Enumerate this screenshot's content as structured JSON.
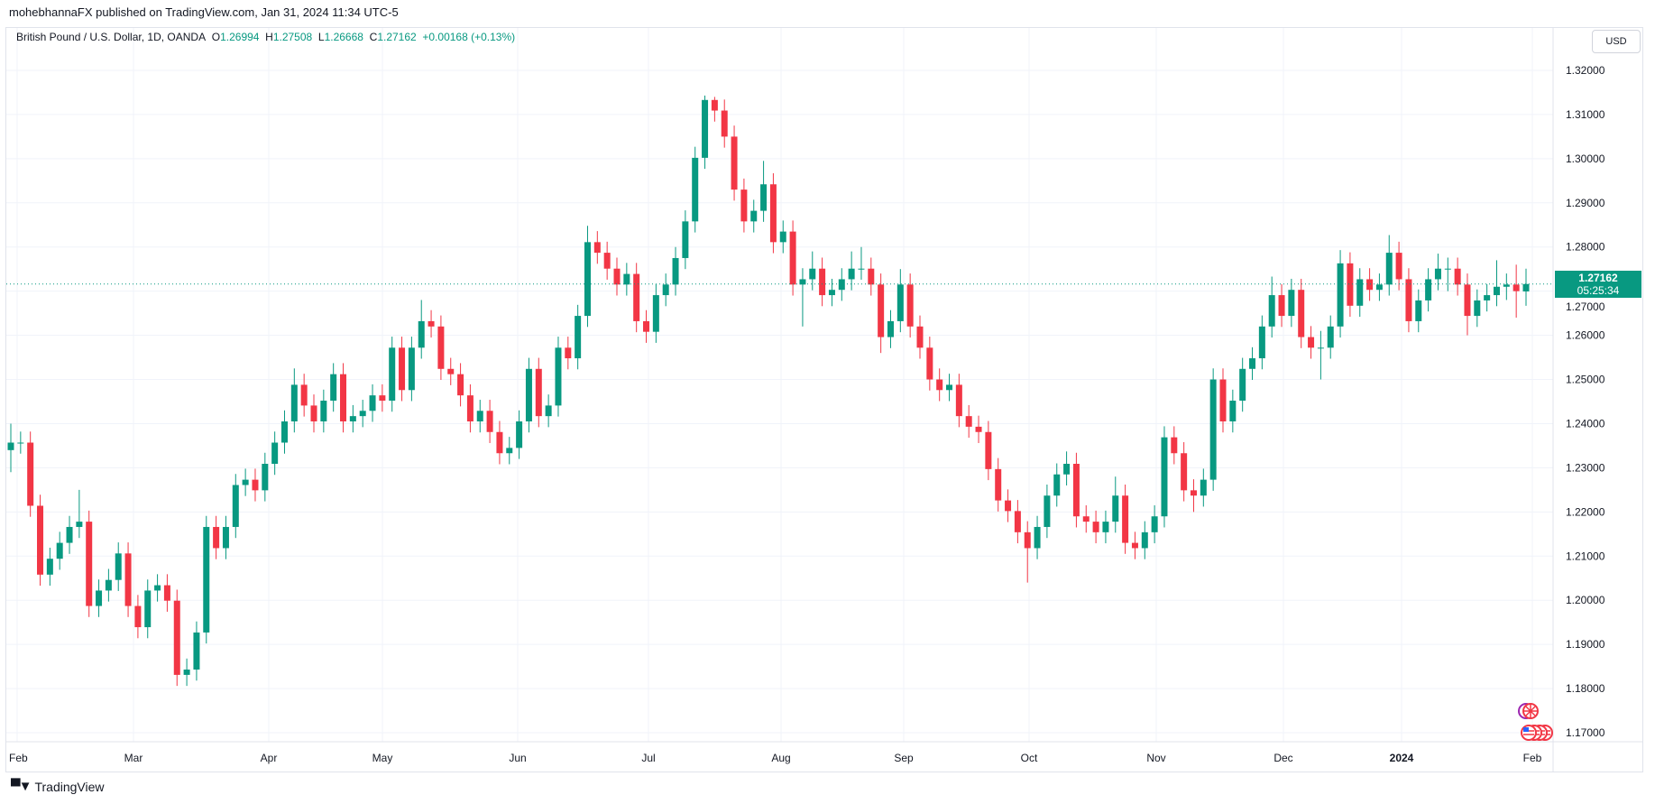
{
  "publisher": "mohebhannaFX published on TradingView.com, Jan 31, 2024 11:34 UTC-5",
  "legend": {
    "symbol": "British Pound / U.S. Dollar, 1D, OANDA",
    "o_label": "O",
    "o": "1.26994",
    "h_label": "H",
    "h": "1.27508",
    "l_label": "L",
    "l": "1.26668",
    "c_label": "C",
    "c": "1.27162",
    "change": "+0.00168 (+0.13%)"
  },
  "currency_button": "USD",
  "last_price": {
    "value": "1.27162",
    "countdown": "05:25:34"
  },
  "footer": {
    "brand": "TradingView",
    "logo_text": "TV"
  },
  "colors": {
    "up": "#089981",
    "down": "#F23645",
    "grid": "#f0f3fa"
  },
  "event_icons": [
    "uk-flag-icon",
    "us-flag-icon"
  ],
  "chart_data": {
    "type": "candlestick",
    "title": "British Pound / U.S. Dollar, 1D, OANDA",
    "xlabel": "",
    "ylabel": "",
    "ylim": [
      1.165,
      1.325
    ],
    "grid": true,
    "y_ticks": [
      "1.17000",
      "1.18000",
      "1.19000",
      "1.20000",
      "1.21000",
      "1.22000",
      "1.23000",
      "1.24000",
      "1.25000",
      "1.26000",
      "1.27000",
      "1.28000",
      "1.29000",
      "1.30000",
      "1.31000",
      "1.32000"
    ],
    "x_ticks": [
      "Feb",
      "Mar",
      "Apr",
      "May",
      "Jun",
      "Jul",
      "Aug",
      "Sep",
      "Oct",
      "Nov",
      "Dec",
      "2024",
      "Feb"
    ],
    "ohlc": [
      [
        1.234,
        1.24,
        1.229,
        1.2357
      ],
      [
        1.2357,
        1.2382,
        1.2332,
        1.2357
      ],
      [
        1.2357,
        1.2382,
        1.2189,
        1.2214
      ],
      [
        1.2214,
        1.2239,
        1.2033,
        1.2058
      ],
      [
        1.2058,
        1.2119,
        1.2033,
        1.2094
      ],
      [
        1.2094,
        1.2155,
        1.2069,
        1.213
      ],
      [
        1.213,
        1.2191,
        1.2105,
        1.2166
      ],
      [
        1.2166,
        1.225,
        1.2141,
        1.2178
      ],
      [
        1.2178,
        1.2203,
        1.1962,
        1.1987
      ],
      [
        1.1987,
        1.2047,
        1.1962,
        1.2022
      ],
      [
        1.2022,
        1.2071,
        1.1997,
        1.2046
      ],
      [
        1.2046,
        1.2131,
        1.2021,
        1.2106
      ],
      [
        1.2106,
        1.2131,
        1.1962,
        1.1987
      ],
      [
        1.1987,
        1.2012,
        1.1914,
        1.1939
      ],
      [
        1.1939,
        1.2047,
        1.1914,
        1.2022
      ],
      [
        1.2022,
        1.2059,
        1.1997,
        1.2034
      ],
      [
        1.2034,
        1.2059,
        1.1974,
        1.1999
      ],
      [
        1.1999,
        1.2024,
        1.1806,
        1.1831
      ],
      [
        1.1831,
        1.1868,
        1.1806,
        1.1843
      ],
      [
        1.1843,
        1.1952,
        1.1818,
        1.1927
      ],
      [
        1.1927,
        1.2191,
        1.1902,
        1.2166
      ],
      [
        1.2166,
        1.2191,
        1.2093,
        1.2118
      ],
      [
        1.2118,
        1.2191,
        1.2093,
        1.2166
      ],
      [
        1.2166,
        1.2286,
        1.2141,
        1.2261
      ],
      [
        1.2261,
        1.2298,
        1.2236,
        1.2273
      ],
      [
        1.2273,
        1.2298,
        1.2224,
        1.2249
      ],
      [
        1.2249,
        1.2334,
        1.2224,
        1.2309
      ],
      [
        1.2309,
        1.2382,
        1.2284,
        1.2357
      ],
      [
        1.2357,
        1.243,
        1.2332,
        1.2405
      ],
      [
        1.2405,
        1.2525,
        1.238,
        1.2488
      ],
      [
        1.2488,
        1.2513,
        1.2416,
        1.2441
      ],
      [
        1.2441,
        1.2466,
        1.238,
        1.2405
      ],
      [
        1.2405,
        1.2477,
        1.238,
        1.2452
      ],
      [
        1.2452,
        1.2537,
        1.2427,
        1.2512
      ],
      [
        1.2512,
        1.2537,
        1.238,
        1.2405
      ],
      [
        1.2405,
        1.2442,
        1.238,
        1.2417
      ],
      [
        1.2417,
        1.2454,
        1.2392,
        1.2429
      ],
      [
        1.2429,
        1.2489,
        1.2404,
        1.2464
      ],
      [
        1.2464,
        1.2489,
        1.2427,
        1.2452
      ],
      [
        1.2452,
        1.2597,
        1.2427,
        1.2572
      ],
      [
        1.2572,
        1.2597,
        1.2451,
        1.2476
      ],
      [
        1.2476,
        1.2597,
        1.2451,
        1.2572
      ],
      [
        1.2572,
        1.268,
        1.2547,
        1.2632
      ],
      [
        1.2632,
        1.2657,
        1.2595,
        1.262
      ],
      [
        1.262,
        1.2645,
        1.2499,
        1.2524
      ],
      [
        1.2524,
        1.2549,
        1.2487,
        1.2512
      ],
      [
        1.2512,
        1.2537,
        1.2439,
        1.2464
      ],
      [
        1.2464,
        1.2489,
        1.238,
        1.2405
      ],
      [
        1.2405,
        1.2454,
        1.238,
        1.2429
      ],
      [
        1.2429,
        1.2454,
        1.2356,
        1.2381
      ],
      [
        1.2381,
        1.2406,
        1.2308,
        1.2333
      ],
      [
        1.2333,
        1.237,
        1.2308,
        1.2345
      ],
      [
        1.2345,
        1.243,
        1.232,
        1.2405
      ],
      [
        1.2405,
        1.2549,
        1.238,
        1.2524
      ],
      [
        1.2524,
        1.2549,
        1.2392,
        1.2417
      ],
      [
        1.2417,
        1.2466,
        1.2392,
        1.2441
      ],
      [
        1.2441,
        1.2597,
        1.2416,
        1.2572
      ],
      [
        1.2572,
        1.2597,
        1.2523,
        1.2548
      ],
      [
        1.2548,
        1.2669,
        1.2523,
        1.2644
      ],
      [
        1.2644,
        1.2848,
        1.2619,
        1.2811
      ],
      [
        1.2811,
        1.2836,
        1.2762,
        1.2787
      ],
      [
        1.2787,
        1.2812,
        1.2726,
        1.2751
      ],
      [
        1.2751,
        1.2776,
        1.269,
        1.2715
      ],
      [
        1.2715,
        1.2764,
        1.269,
        1.2739
      ],
      [
        1.2739,
        1.2764,
        1.2607,
        1.2632
      ],
      [
        1.2632,
        1.2657,
        1.2583,
        1.2608
      ],
      [
        1.2608,
        1.2716,
        1.2583,
        1.2691
      ],
      [
        1.2691,
        1.274,
        1.2666,
        1.2715
      ],
      [
        1.2715,
        1.28,
        1.269,
        1.2775
      ],
      [
        1.2775,
        1.2883,
        1.275,
        1.2858
      ],
      [
        1.2858,
        1.3027,
        1.2833,
        1.3002
      ],
      [
        1.3002,
        1.3143,
        1.2977,
        1.3133
      ],
      [
        1.3133,
        1.314,
        1.3084,
        1.3109
      ],
      [
        1.3109,
        1.3134,
        1.3025,
        1.305
      ],
      [
        1.305,
        1.3075,
        1.2905,
        1.293
      ],
      [
        1.293,
        1.2955,
        1.2833,
        1.2858
      ],
      [
        1.2858,
        1.2907,
        1.2833,
        1.2882
      ],
      [
        1.2882,
        1.2995,
        1.2857,
        1.2942
      ],
      [
        1.2942,
        1.2967,
        1.2786,
        1.2811
      ],
      [
        1.2811,
        1.286,
        1.2786,
        1.2835
      ],
      [
        1.2835,
        1.286,
        1.269,
        1.2715
      ],
      [
        1.2715,
        1.2752,
        1.262,
        1.2727
      ],
      [
        1.2727,
        1.279,
        1.2702,
        1.2751
      ],
      [
        1.2751,
        1.2776,
        1.2666,
        1.2691
      ],
      [
        1.2691,
        1.2728,
        1.2666,
        1.2703
      ],
      [
        1.2703,
        1.2752,
        1.2678,
        1.2727
      ],
      [
        1.2727,
        1.279,
        1.2702,
        1.2751
      ],
      [
        1.2751,
        1.28,
        1.2726,
        1.2751
      ],
      [
        1.2751,
        1.2776,
        1.269,
        1.2715
      ],
      [
        1.2715,
        1.274,
        1.256,
        1.2596
      ],
      [
        1.2596,
        1.2657,
        1.2571,
        1.2632
      ],
      [
        1.2632,
        1.275,
        1.2607,
        1.2715
      ],
      [
        1.2715,
        1.274,
        1.2595,
        1.262
      ],
      [
        1.262,
        1.2645,
        1.2547,
        1.2572
      ],
      [
        1.2572,
        1.2597,
        1.2475,
        1.25
      ],
      [
        1.25,
        1.2525,
        1.2451,
        1.2476
      ],
      [
        1.2476,
        1.2513,
        1.2451,
        1.2488
      ],
      [
        1.2488,
        1.2513,
        1.2392,
        1.2417
      ],
      [
        1.2417,
        1.2442,
        1.2368,
        1.2393
      ],
      [
        1.2393,
        1.2418,
        1.2356,
        1.2381
      ],
      [
        1.2381,
        1.2406,
        1.2272,
        1.2297
      ],
      [
        1.2297,
        1.2322,
        1.2201,
        1.2226
      ],
      [
        1.2226,
        1.2251,
        1.2177,
        1.2202
      ],
      [
        1.2202,
        1.2227,
        1.2129,
        1.2154
      ],
      [
        1.2154,
        1.2179,
        1.204,
        1.2118
      ],
      [
        1.2118,
        1.2191,
        1.2093,
        1.2166
      ],
      [
        1.2166,
        1.2262,
        1.2141,
        1.2237
      ],
      [
        1.2237,
        1.231,
        1.2212,
        1.2285
      ],
      [
        1.2285,
        1.2337,
        1.226,
        1.2309
      ],
      [
        1.2309,
        1.2334,
        1.2165,
        1.219
      ],
      [
        1.219,
        1.2215,
        1.2153,
        1.2178
      ],
      [
        1.2178,
        1.2203,
        1.2129,
        1.2154
      ],
      [
        1.2154,
        1.2203,
        1.2129,
        1.2178
      ],
      [
        1.2178,
        1.228,
        1.2153,
        1.2237
      ],
      [
        1.2237,
        1.2262,
        1.2105,
        1.213
      ],
      [
        1.213,
        1.2155,
        1.2093,
        1.2118
      ],
      [
        1.2118,
        1.2179,
        1.2093,
        1.2154
      ],
      [
        1.2154,
        1.2215,
        1.2129,
        1.219
      ],
      [
        1.219,
        1.2394,
        1.2165,
        1.2369
      ],
      [
        1.2369,
        1.2394,
        1.2308,
        1.2333
      ],
      [
        1.2333,
        1.2358,
        1.2224,
        1.2249
      ],
      [
        1.2249,
        1.2274,
        1.22,
        1.2237
      ],
      [
        1.2237,
        1.2298,
        1.2212,
        1.2273
      ],
      [
        1.2273,
        1.2525,
        1.2248,
        1.25
      ],
      [
        1.25,
        1.2525,
        1.238,
        1.2405
      ],
      [
        1.2405,
        1.2477,
        1.238,
        1.2452
      ],
      [
        1.2452,
        1.2549,
        1.2427,
        1.2524
      ],
      [
        1.2524,
        1.2573,
        1.2499,
        1.2548
      ],
      [
        1.2548,
        1.2645,
        1.2523,
        1.262
      ],
      [
        1.262,
        1.2733,
        1.2595,
        1.2691
      ],
      [
        1.2691,
        1.2716,
        1.2619,
        1.2644
      ],
      [
        1.2644,
        1.2728,
        1.2619,
        1.2703
      ],
      [
        1.2703,
        1.2728,
        1.2571,
        1.2596
      ],
      [
        1.2596,
        1.2621,
        1.2547,
        1.2572
      ],
      [
        1.2572,
        1.261,
        1.25,
        1.2572
      ],
      [
        1.2572,
        1.2645,
        1.2547,
        1.262
      ],
      [
        1.262,
        1.2793,
        1.2595,
        1.2763
      ],
      [
        1.2763,
        1.2788,
        1.2642,
        1.2667
      ],
      [
        1.2667,
        1.2752,
        1.2642,
        1.2727
      ],
      [
        1.2727,
        1.2752,
        1.2678,
        1.2703
      ],
      [
        1.2703,
        1.274,
        1.2678,
        1.2715
      ],
      [
        1.2715,
        1.2827,
        1.269,
        1.2787
      ],
      [
        1.2787,
        1.2812,
        1.2702,
        1.2727
      ],
      [
        1.2727,
        1.2752,
        1.2607,
        1.2632
      ],
      [
        1.2632,
        1.2704,
        1.2607,
        1.2679
      ],
      [
        1.2679,
        1.2752,
        1.2654,
        1.2727
      ],
      [
        1.2727,
        1.2785,
        1.2702,
        1.2751
      ],
      [
        1.2751,
        1.2776,
        1.27,
        1.2751
      ],
      [
        1.2751,
        1.2776,
        1.269,
        1.2715
      ],
      [
        1.2715,
        1.274,
        1.26,
        1.2644
      ],
      [
        1.2644,
        1.2704,
        1.2619,
        1.2679
      ],
      [
        1.2679,
        1.2716,
        1.2654,
        1.2691
      ],
      [
        1.2691,
        1.277,
        1.2666,
        1.271
      ],
      [
        1.271,
        1.274,
        1.268,
        1.2715
      ],
      [
        1.2715,
        1.276,
        1.264,
        1.27
      ],
      [
        1.26994,
        1.27508,
        1.26668,
        1.27162
      ]
    ],
    "last_price": 1.27162
  }
}
